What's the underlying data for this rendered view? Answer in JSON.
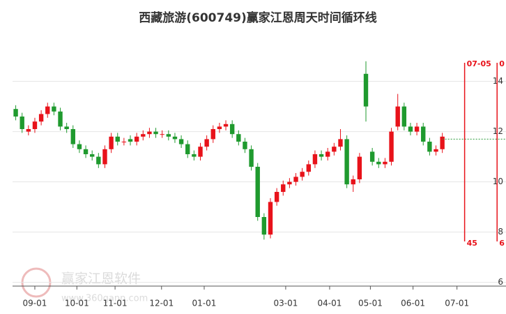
{
  "chart_data": {
    "type": "candlestick",
    "title": "西藏旅游(600749)赢家江恩周天时间循环线",
    "open": [
      12.9,
      12.6,
      12.0,
      12.1,
      12.4,
      12.7,
      13.0,
      12.8,
      12.2,
      12.1,
      11.5,
      11.3,
      11.1,
      11.0,
      10.7,
      11.3,
      11.8,
      11.6,
      11.7,
      11.6,
      11.8,
      11.9,
      12.0,
      11.9,
      11.9,
      11.8,
      11.7,
      11.5,
      11.1,
      11.0,
      11.4,
      11.7,
      12.1,
      12.2,
      12.3,
      11.9,
      11.6,
      11.3,
      10.6,
      8.6,
      7.9,
      9.2,
      9.6,
      9.9,
      10.0,
      10.2,
      10.4,
      10.7,
      11.1,
      11.0,
      11.2,
      11.4,
      11.7,
      9.9,
      10.1,
      14.3,
      11.2,
      10.8,
      10.7,
      10.8,
      12.2,
      13.0,
      12.2,
      12.0,
      12.2,
      11.6,
      11.2,
      11.3
    ],
    "high": [
      13.05,
      12.75,
      12.25,
      12.55,
      12.85,
      13.15,
      13.15,
      12.95,
      12.35,
      12.25,
      11.65,
      11.45,
      11.25,
      11.15,
      11.45,
      11.95,
      11.95,
      11.75,
      11.85,
      11.95,
      12.05,
      12.15,
      12.15,
      12.05,
      12.05,
      11.95,
      11.85,
      11.65,
      11.25,
      11.55,
      11.85,
      12.25,
      12.35,
      12.45,
      12.45,
      12.05,
      11.75,
      11.45,
      10.75,
      8.75,
      9.35,
      9.75,
      10.05,
      10.15,
      10.35,
      10.55,
      10.85,
      11.25,
      11.25,
      11.35,
      11.55,
      12.1,
      11.85,
      10.25,
      11.15,
      14.8,
      11.35,
      10.95,
      10.95,
      12.15,
      13.5,
      13.15,
      12.35,
      12.35,
      12.35,
      11.75,
      11.45,
      11.95
    ],
    "low": [
      12.45,
      11.95,
      11.85,
      11.95,
      12.25,
      12.55,
      12.65,
      12.05,
      11.95,
      11.35,
      11.15,
      10.95,
      10.85,
      10.55,
      10.55,
      11.15,
      11.45,
      11.45,
      11.45,
      11.45,
      11.65,
      11.75,
      11.75,
      11.75,
      11.65,
      11.55,
      11.35,
      10.95,
      10.85,
      10.85,
      11.25,
      11.55,
      11.95,
      12.05,
      11.75,
      11.45,
      11.15,
      10.45,
      8.45,
      7.7,
      7.75,
      9.05,
      9.45,
      9.75,
      9.85,
      10.05,
      10.25,
      10.55,
      10.85,
      10.85,
      11.05,
      11.25,
      9.75,
      9.6,
      9.95,
      12.4,
      10.65,
      10.55,
      10.55,
      10.65,
      12.05,
      12.05,
      11.85,
      11.85,
      11.45,
      11.05,
      11.05,
      11.15
    ],
    "close": [
      12.6,
      12.1,
      12.1,
      12.4,
      12.7,
      13.0,
      12.8,
      12.2,
      12.1,
      11.5,
      11.3,
      11.1,
      11.0,
      10.7,
      11.3,
      11.8,
      11.6,
      11.6,
      11.6,
      11.8,
      11.9,
      12.0,
      11.9,
      11.9,
      11.8,
      11.7,
      11.5,
      11.1,
      11.0,
      11.4,
      11.7,
      12.1,
      12.2,
      12.3,
      11.9,
      11.6,
      11.3,
      10.6,
      8.6,
      7.9,
      9.2,
      9.6,
      9.9,
      10.0,
      10.2,
      10.4,
      10.7,
      11.1,
      11.0,
      11.2,
      11.4,
      11.7,
      9.9,
      10.1,
      11.0,
      13.0,
      10.8,
      10.7,
      10.8,
      12.0,
      13.0,
      12.2,
      12.0,
      12.2,
      11.6,
      11.2,
      11.3,
      11.8
    ],
    "up_color": "#e8121a",
    "down_color": "#1f9a2e",
    "xlim": [
      -0.5,
      77
    ],
    "ylim": [
      5.85,
      16.05
    ],
    "xticks": [
      {
        "value": 3.0,
        "label": "09-01"
      },
      {
        "value": 9.6,
        "label": "10-01"
      },
      {
        "value": 15.6,
        "label": "11-01"
      },
      {
        "value": 22.9,
        "label": "12-01"
      },
      {
        "value": 29.6,
        "label": "01-01"
      },
      {
        "value": 42.4,
        "label": "03-01"
      },
      {
        "value": 49.3,
        "label": "04-01"
      },
      {
        "value": 55.7,
        "label": "05-01"
      },
      {
        "value": 62.4,
        "label": "06-01"
      },
      {
        "value": 69.3,
        "label": "07-01"
      }
    ],
    "yticks": [
      6,
      8,
      10,
      12,
      14
    ],
    "grid": true,
    "cycle_lines": [
      {
        "x": 70.5,
        "top_label": "07-05",
        "bottom_label": "45"
      },
      {
        "x": 75.6,
        "top_label": "0",
        "bottom_label": "6"
      }
    ],
    "cycle_color": "#e8121a",
    "reference_line": {
      "y": 11.7,
      "color": "#2a9a3a"
    },
    "watermark": {
      "name": "赢家江恩软件",
      "url": "www.360gann.com"
    }
  }
}
